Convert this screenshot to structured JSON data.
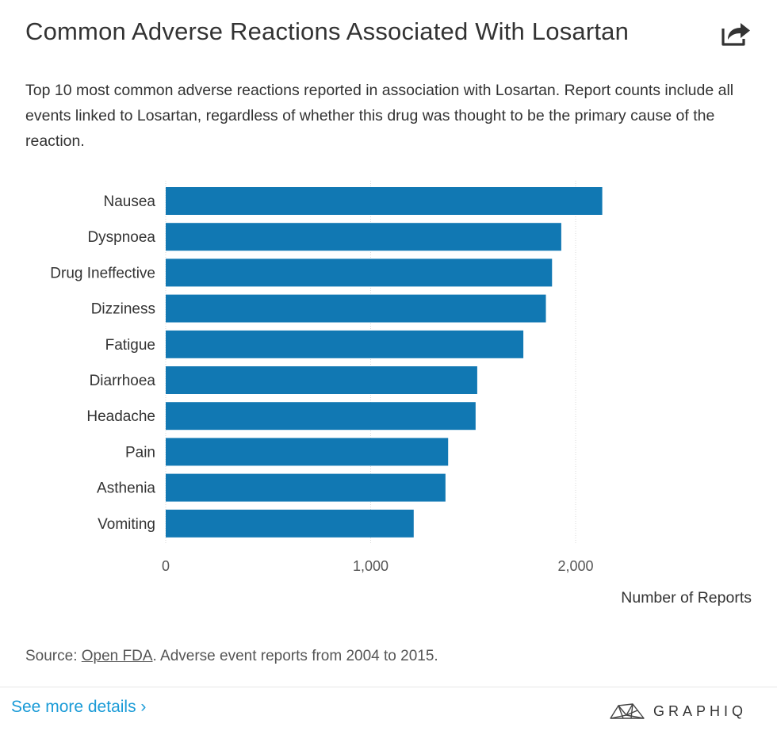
{
  "header": {
    "title": "Common Adverse Reactions Associated With Losartan",
    "share_icon": "share-icon",
    "subtitle": "Top 10 most common adverse reactions reported in association with Losartan. Report counts include all events linked to Losartan, regardless of whether this drug was thought to be the primary cause of the reaction."
  },
  "chart_data": {
    "type": "bar",
    "orientation": "horizontal",
    "categories": [
      "Nausea",
      "Dyspnoea",
      "Drug Ineffective",
      "Dizziness",
      "Fatigue",
      "Diarrhoea",
      "Headache",
      "Pain",
      "Asthenia",
      "Vomiting"
    ],
    "values": [
      2130,
      1930,
      1885,
      1855,
      1745,
      1520,
      1512,
      1378,
      1365,
      1210
    ],
    "xlabel": "Number of Reports",
    "xlim": [
      0,
      2600
    ],
    "xticks": [
      0,
      1000,
      2000
    ],
    "xtick_labels": [
      "0",
      "1,000",
      "2,000"
    ],
    "bar_color": "#1178b3",
    "grid": true
  },
  "footer": {
    "source_prefix": "Source: ",
    "source_link": "Open FDA",
    "source_suffix": ". Adverse event reports from 2004 to 2015.",
    "details_link": "See more details ›",
    "brand": "GRAPHIQ",
    "brand_icon": "graphiq-logo-icon",
    "link_color": "#1a9bd7"
  }
}
